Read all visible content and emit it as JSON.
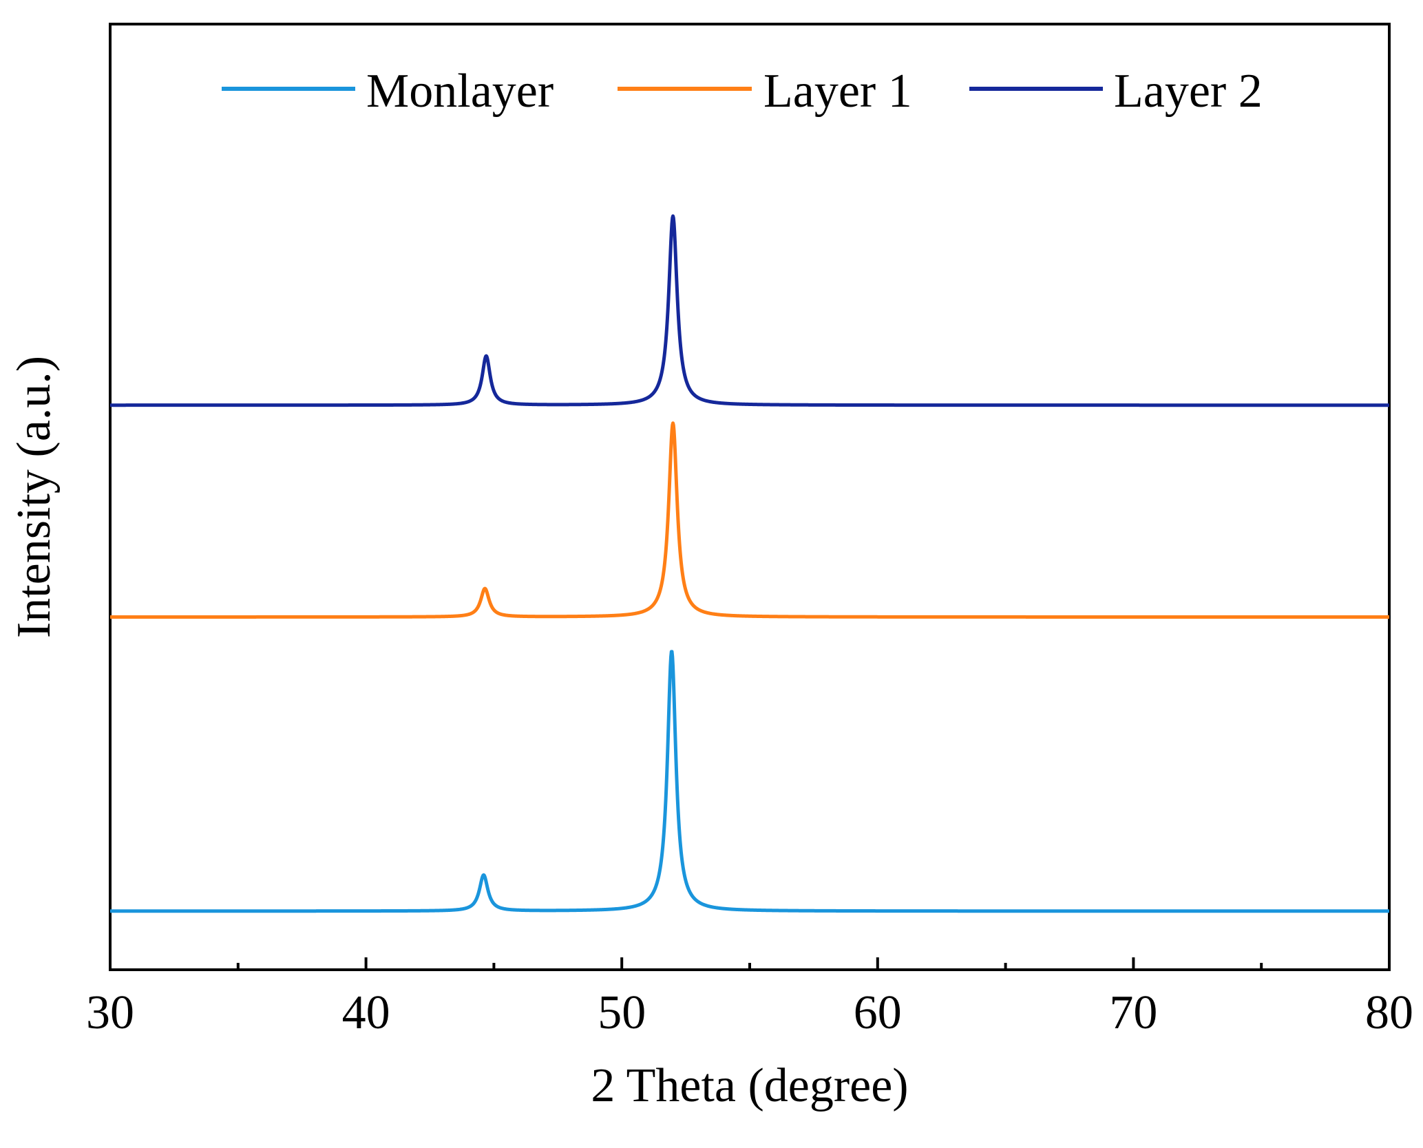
{
  "chart_data": {
    "type": "line",
    "title": "",
    "xlabel": "2 Theta (degree)",
    "ylabel": "Intensity (a.u.)",
    "xlim": [
      30,
      80
    ],
    "ylim": [
      0,
      1
    ],
    "x_ticks": [
      "30",
      "40",
      "50",
      "60",
      "70",
      "80"
    ],
    "x_minor_step": 5,
    "y_ticks": [],
    "grid": false,
    "legend_position": "top",
    "series": [
      {
        "name": "Monlayer",
        "color": "#1a95dc",
        "baseline": 0.062,
        "peaks": [
          {
            "position": 44.6,
            "height": 0.038,
            "width": 0.4
          },
          {
            "position": 51.95,
            "height": 0.275,
            "width": 0.4
          }
        ]
      },
      {
        "name": "Layer 1",
        "color": "#ff7f16",
        "baseline": 0.373,
        "peaks": [
          {
            "position": 44.65,
            "height": 0.03,
            "width": 0.4
          },
          {
            "position": 52.0,
            "height": 0.205,
            "width": 0.4
          }
        ]
      },
      {
        "name": "Layer 2",
        "color": "#15289a",
        "baseline": 0.597,
        "peaks": [
          {
            "position": 44.7,
            "height": 0.052,
            "width": 0.38
          },
          {
            "position": 52.0,
            "height": 0.2,
            "width": 0.4
          }
        ]
      }
    ]
  }
}
